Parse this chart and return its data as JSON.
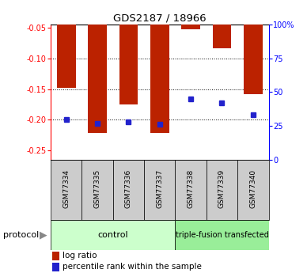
{
  "title": "GDS2187 / 18966",
  "samples": [
    "GSM77334",
    "GSM77335",
    "GSM77336",
    "GSM77337",
    "GSM77338",
    "GSM77339",
    "GSM77340"
  ],
  "log_ratio": [
    -0.148,
    -0.222,
    -0.175,
    -0.222,
    -0.053,
    -0.083,
    -0.158
  ],
  "percentile": [
    30,
    27,
    28,
    26,
    45,
    42,
    33
  ],
  "bar_color": "#bb2200",
  "dot_color": "#2222cc",
  "ylim_left": [
    -0.265,
    -0.045
  ],
  "yticks_left": [
    -0.25,
    -0.2,
    -0.15,
    -0.1,
    -0.05
  ],
  "ylim_right": [
    0,
    100
  ],
  "yticks_right": [
    0,
    25,
    50,
    75,
    100
  ],
  "yticklabels_right": [
    "0",
    "25",
    "50",
    "75",
    "100%"
  ],
  "groups": [
    {
      "label": "control",
      "n": 4,
      "color": "#ccffcc"
    },
    {
      "label": "triple-fusion transfected",
      "n": 3,
      "color": "#99ee99"
    }
  ],
  "protocol_label": "protocol",
  "legend_log_ratio": "log ratio",
  "legend_percentile": "percentile rank within the sample",
  "sample_box_color": "#cccccc",
  "bar_width": 0.6
}
